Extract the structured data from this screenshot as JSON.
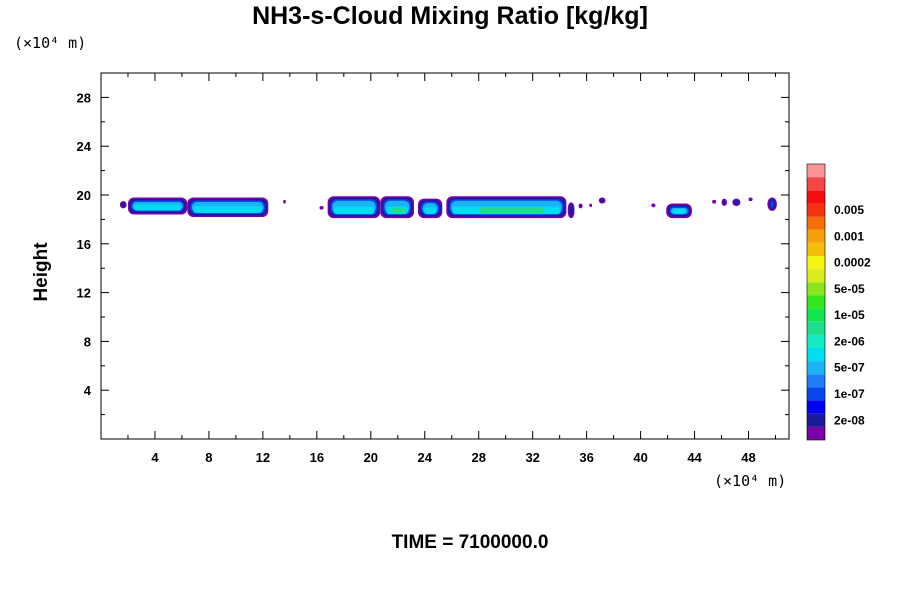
{
  "chart_data": {
    "type": "heatmap",
    "title": "NH3-s-Cloud Mixing Ratio [kg/kg]",
    "xlabel": "",
    "ylabel": "Height",
    "x_unit": "(×10⁴ m)",
    "y_unit": "(×10⁴ m)",
    "xlim": [
      0,
      51
    ],
    "ylim": [
      0,
      30
    ],
    "x_ticks": [
      4,
      8,
      12,
      16,
      20,
      24,
      28,
      32,
      36,
      40,
      44,
      48
    ],
    "y_ticks": [
      4,
      8,
      12,
      16,
      20,
      24,
      28
    ],
    "footer": "TIME = 7100000.0",
    "colorbar": {
      "colors": [
        "#7a00a8",
        "#1a1a9c",
        "#0000f0",
        "#0a46f0",
        "#1e7cf5",
        "#1ab4f5",
        "#00dcf0",
        "#14ecc4",
        "#1ee08c",
        "#14e650",
        "#32e61e",
        "#8ce61e",
        "#d7eb1e",
        "#f5f514",
        "#f5be0a",
        "#f5a00a",
        "#f56e0a",
        "#f53214",
        "#f50f0f",
        "#f54646",
        "#fa9696"
      ],
      "labels": [
        "2e-08",
        "1e-07",
        "5e-07",
        "2e-06",
        "1e-05",
        "5e-05",
        "0.0002",
        "0.001",
        "0.005"
      ]
    },
    "cloud_regions": [
      {
        "x0": 1.4,
        "x1": 1.9,
        "y0": 18.9,
        "y1": 19.5,
        "core": "none"
      },
      {
        "x0": 2.0,
        "x1": 6.4,
        "y0": 18.4,
        "y1": 19.8,
        "core": "cyan"
      },
      {
        "x0": 6.4,
        "x1": 12.4,
        "y0": 18.2,
        "y1": 19.8,
        "core": "cyan"
      },
      {
        "x0": 13.5,
        "x1": 13.7,
        "y0": 19.3,
        "y1": 19.6,
        "core": "none"
      },
      {
        "x0": 16.2,
        "x1": 16.5,
        "y0": 18.8,
        "y1": 19.1,
        "core": "none"
      },
      {
        "x0": 16.8,
        "x1": 20.7,
        "y0": 18.1,
        "y1": 19.9,
        "core": "cyan"
      },
      {
        "x0": 20.7,
        "x1": 23.2,
        "y0": 18.1,
        "y1": 19.9,
        "core": "green"
      },
      {
        "x0": 23.5,
        "x1": 25.3,
        "y0": 18.1,
        "y1": 19.7,
        "core": "cyan"
      },
      {
        "x0": 25.6,
        "x1": 34.5,
        "y0": 18.1,
        "y1": 19.9,
        "core": "green"
      },
      {
        "x0": 34.6,
        "x1": 35.1,
        "y0": 18.1,
        "y1": 19.4,
        "core": "cyan"
      },
      {
        "x0": 35.4,
        "x1": 35.7,
        "y0": 18.9,
        "y1": 19.3,
        "core": "none"
      },
      {
        "x0": 36.2,
        "x1": 36.4,
        "y0": 19.0,
        "y1": 19.3,
        "core": "none"
      },
      {
        "x0": 36.9,
        "x1": 37.4,
        "y0": 19.3,
        "y1": 19.8,
        "core": "none"
      },
      {
        "x0": 40.8,
        "x1": 41.1,
        "y0": 19.0,
        "y1": 19.3,
        "core": "none"
      },
      {
        "x0": 41.9,
        "x1": 43.8,
        "y0": 18.1,
        "y1": 19.3,
        "core": "cyan"
      },
      {
        "x0": 45.3,
        "x1": 45.6,
        "y0": 19.3,
        "y1": 19.6,
        "core": "none"
      },
      {
        "x0": 46.0,
        "x1": 46.4,
        "y0": 19.1,
        "y1": 19.7,
        "core": "none"
      },
      {
        "x0": 46.8,
        "x1": 47.4,
        "y0": 19.1,
        "y1": 19.7,
        "core": "none"
      },
      {
        "x0": 48.0,
        "x1": 48.3,
        "y0": 19.5,
        "y1": 19.8,
        "core": "none"
      },
      {
        "x0": 49.4,
        "x1": 50.1,
        "y0": 18.7,
        "y1": 19.8,
        "core": "none"
      }
    ]
  }
}
